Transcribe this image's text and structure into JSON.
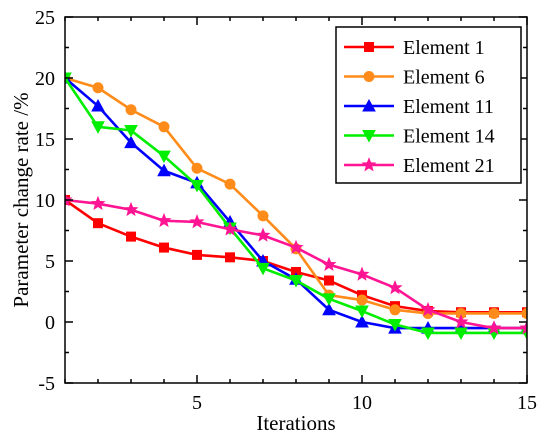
{
  "chart_data": {
    "type": "line",
    "title": "",
    "xlabel": "Iterations",
    "ylabel": "Parameter change rate /%",
    "xlim": [
      1,
      15
    ],
    "ylim": [
      -5,
      25
    ],
    "x_ticks": [
      5,
      10,
      15
    ],
    "y_ticks": [
      -5,
      0,
      5,
      10,
      15,
      20,
      25
    ],
    "grid": false,
    "legend_position": "top-right",
    "x": [
      1,
      2,
      3,
      4,
      5,
      6,
      7,
      8,
      9,
      10,
      11,
      12,
      13,
      14,
      15
    ],
    "series": [
      {
        "name": "Element 1",
        "color": "#ff0000",
        "marker": "square",
        "values": [
          10.0,
          8.1,
          7.0,
          6.1,
          5.5,
          5.3,
          5.0,
          4.1,
          3.4,
          2.2,
          1.3,
          0.9,
          0.8,
          0.8,
          0.8
        ]
      },
      {
        "name": "Element 6",
        "color": "#ff8c1a",
        "marker": "circle",
        "values": [
          20.0,
          19.2,
          17.4,
          16.0,
          12.6,
          11.3,
          8.7,
          6.0,
          2.2,
          1.8,
          1.0,
          0.7,
          0.7,
          0.7,
          0.7
        ]
      },
      {
        "name": "Element 11",
        "color": "#0000ff",
        "marker": "triangle-up",
        "values": [
          20.0,
          17.7,
          14.7,
          12.4,
          11.4,
          8.2,
          5.0,
          3.5,
          1.0,
          0.0,
          -0.5,
          -0.5,
          -0.5,
          -0.5,
          -0.5
        ]
      },
      {
        "name": "Element 14",
        "color": "#00ee00",
        "marker": "triangle-down",
        "values": [
          20.0,
          16.0,
          15.7,
          13.6,
          11.2,
          7.7,
          4.4,
          3.4,
          1.9,
          0.9,
          -0.2,
          -0.9,
          -0.9,
          -0.9,
          -0.9
        ]
      },
      {
        "name": "Element 21",
        "color": "#ff1493",
        "marker": "star",
        "values": [
          10.0,
          9.7,
          9.2,
          8.3,
          8.2,
          7.6,
          7.1,
          6.1,
          4.7,
          3.9,
          2.8,
          1.0,
          0.0,
          -0.5,
          -0.5
        ]
      }
    ]
  }
}
